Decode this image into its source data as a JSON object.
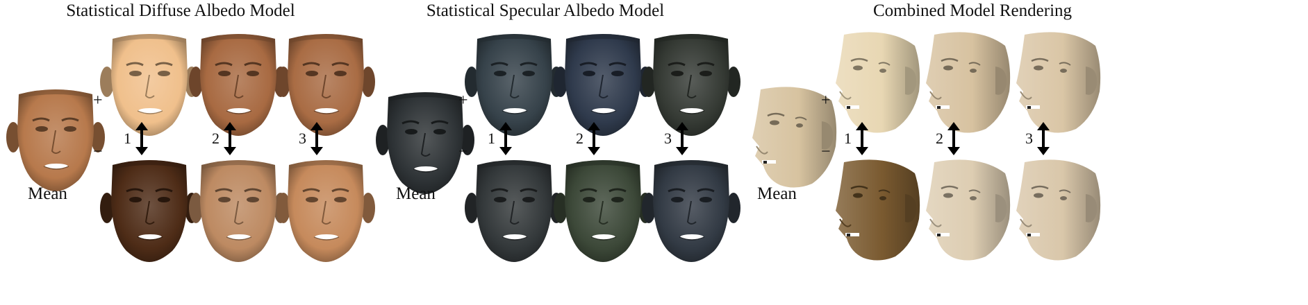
{
  "panels": [
    {
      "title": "Statistical Diffuse Albedo Model",
      "mean_label": "Mean",
      "plus": "+",
      "minus": "−",
      "pc_labels": [
        "1",
        "2",
        "3"
      ],
      "skin": {
        "mean": "#b7794c",
        "plus": [
          "#f0c08c",
          "#a86a42",
          "#a96c44"
        ],
        "minus": [
          "#4e2c17",
          "#bd8a62",
          "#c68a5c"
        ]
      }
    },
    {
      "title": "Statistical Specular Albedo Model",
      "mean_label": "Mean",
      "plus": "+",
      "minus": "−",
      "pc_labels": [
        "1",
        "2",
        "3"
      ],
      "skin": {
        "mean": "#2e3336",
        "plus": [
          "#36424a",
          "#2f3a4c",
          "#353a34"
        ],
        "minus": [
          "#33383a",
          "#3c4838",
          "#323a44"
        ]
      }
    },
    {
      "title": "Combined Model Rendering",
      "mean_label": "Mean",
      "plus": "+",
      "minus": "−",
      "pc_labels": [
        "1",
        "2",
        "3"
      ],
      "skin": {
        "mean": "#d7c3a0",
        "plus": [
          "#e8d7b3",
          "#d7c2a0",
          "#dac6a6"
        ],
        "minus": [
          "#7a5a30",
          "#ddcdb2",
          "#d9c7aa"
        ]
      }
    }
  ]
}
